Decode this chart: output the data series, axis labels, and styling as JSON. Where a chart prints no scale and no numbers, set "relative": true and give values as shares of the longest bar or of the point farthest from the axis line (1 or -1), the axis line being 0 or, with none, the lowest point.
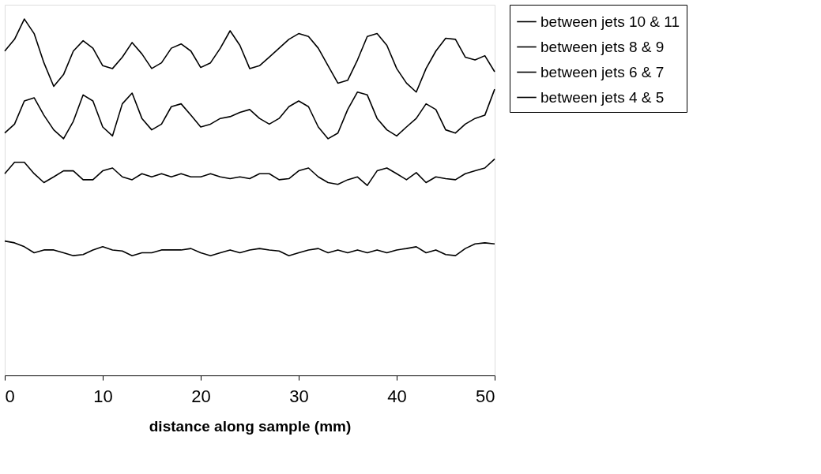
{
  "chart_data": {
    "type": "line",
    "xlabel": "distance along sample (mm)",
    "relative": true,
    "xlim": [
      0,
      50
    ],
    "xticks": [
      0,
      10,
      20,
      30,
      40,
      50
    ],
    "grid": false,
    "legend": "right",
    "marker": "none",
    "line_style": "solid",
    "x": [
      0,
      1,
      2,
      3,
      4,
      5,
      6,
      7,
      8,
      9,
      10,
      11,
      12,
      13,
      14,
      15,
      16,
      17,
      18,
      19,
      20,
      21,
      22,
      23,
      24,
      25,
      26,
      27,
      28,
      29,
      30,
      31,
      32,
      33,
      34,
      35,
      36,
      37,
      38,
      39,
      40,
      41,
      42,
      43,
      44,
      45,
      46,
      47,
      48,
      49,
      50
    ],
    "series": [
      {
        "name": "between jets 10 & 11",
        "color": "#000000",
        "values": [
          0.91,
          0.943,
          1,
          0.959,
          0.877,
          0.811,
          0.844,
          0.91,
          0.939,
          0.918,
          0.869,
          0.861,
          0.893,
          0.934,
          0.902,
          0.861,
          0.877,
          0.918,
          0.93,
          0.91,
          0.864,
          0.877,
          0.918,
          0.967,
          0.926,
          0.861,
          0.869,
          0.893,
          0.918,
          0.943,
          0.959,
          0.951,
          0.918,
          0.869,
          0.82,
          0.828,
          0.885,
          0.951,
          0.959,
          0.926,
          0.861,
          0.82,
          0.795,
          0.861,
          0.91,
          0.946,
          0.943,
          0.893,
          0.885,
          0.897,
          0.852
        ]
      },
      {
        "name": "between jets 8 & 9",
        "color": "#000000",
        "values": [
          0.68,
          0.705,
          0.77,
          0.779,
          0.73,
          0.689,
          0.664,
          0.713,
          0.787,
          0.77,
          0.697,
          0.672,
          0.762,
          0.792,
          0.721,
          0.689,
          0.705,
          0.754,
          0.762,
          0.73,
          0.697,
          0.705,
          0.721,
          0.726,
          0.738,
          0.746,
          0.721,
          0.705,
          0.721,
          0.754,
          0.77,
          0.754,
          0.697,
          0.664,
          0.68,
          0.746,
          0.795,
          0.787,
          0.721,
          0.689,
          0.672,
          0.697,
          0.721,
          0.762,
          0.746,
          0.689,
          0.68,
          0.705,
          0.721,
          0.73,
          0.803
        ]
      },
      {
        "name": "between jets 6 & 7",
        "color": "#000000",
        "values": [
          0.566,
          0.598,
          0.598,
          0.566,
          0.541,
          0.557,
          0.574,
          0.574,
          0.549,
          0.549,
          0.574,
          0.582,
          0.557,
          0.549,
          0.566,
          0.557,
          0.566,
          0.557,
          0.566,
          0.557,
          0.557,
          0.566,
          0.557,
          0.552,
          0.557,
          0.552,
          0.566,
          0.566,
          0.549,
          0.552,
          0.574,
          0.582,
          0.557,
          0.541,
          0.536,
          0.549,
          0.557,
          0.533,
          0.574,
          0.582,
          0.566,
          0.549,
          0.569,
          0.541,
          0.557,
          0.552,
          0.549,
          0.566,
          0.574,
          0.582,
          0.607
        ]
      },
      {
        "name": "between jets 4 & 5",
        "color": "#000000",
        "values": [
          0.377,
          0.372,
          0.361,
          0.344,
          0.352,
          0.352,
          0.344,
          0.336,
          0.339,
          0.352,
          0.361,
          0.352,
          0.349,
          0.336,
          0.344,
          0.344,
          0.352,
          0.352,
          0.352,
          0.356,
          0.344,
          0.336,
          0.344,
          0.352,
          0.344,
          0.352,
          0.356,
          0.352,
          0.349,
          0.336,
          0.344,
          0.352,
          0.356,
          0.344,
          0.352,
          0.344,
          0.352,
          0.344,
          0.352,
          0.344,
          0.352,
          0.356,
          0.361,
          0.344,
          0.352,
          0.339,
          0.336,
          0.356,
          0.369,
          0.372,
          0.369
        ]
      }
    ]
  }
}
